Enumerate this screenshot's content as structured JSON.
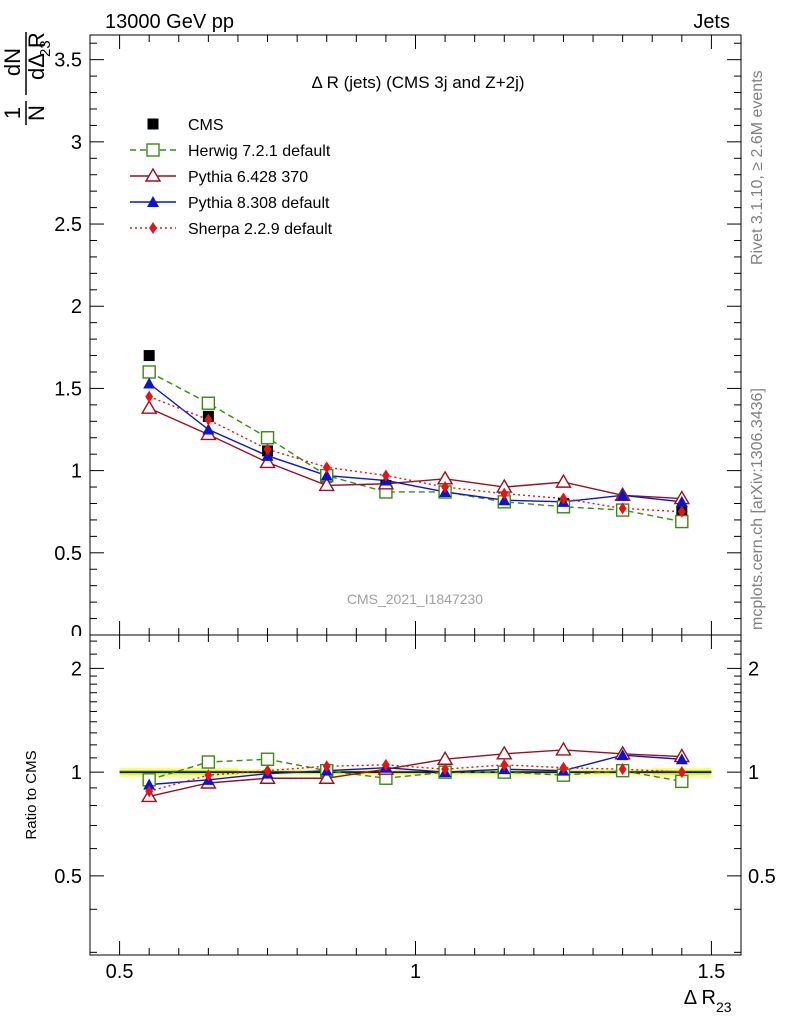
{
  "header": {
    "left": "13000 GeV pp",
    "right": "Jets"
  },
  "side": {
    "rivet": "Rivet 3.1.10, ≥ 2.6M events",
    "mcplots": "mcplots.cern.ch [arXiv:1306.3436]"
  },
  "chart_data": {
    "type": "line",
    "title": "Δ R (jets) (CMS 3j and Z+2j)",
    "watermark": "CMS_2021_I1847230",
    "xlabel": "Δ R",
    "xlabel_sub": "23",
    "ylabel": {
      "num": "1",
      "den": "N",
      "frac_num": "dN",
      "frac_den": "dΔ R",
      "frac_den_sub": "23"
    },
    "ratio_ylabel": "Ratio to CMS",
    "xlim": [
      0.45,
      1.55
    ],
    "ylim": [
      0,
      3.65
    ],
    "ratio_ylim": [
      0.2947,
      2.5
    ],
    "ratio_scale": "log",
    "x_ticks": [
      "0.5",
      "1",
      "1.5"
    ],
    "y_ticks": [
      "0",
      "0.5",
      "1",
      "1.5",
      "2",
      "2.5",
      "3",
      "3.5"
    ],
    "ratio_ticks": [
      "0.5",
      "1",
      "2"
    ],
    "legend_position": "top-left",
    "x": [
      0.55,
      0.65,
      0.75,
      0.85,
      0.95,
      1.05,
      1.15,
      1.25,
      1.35,
      1.45
    ],
    "series": [
      {
        "name": "CMS",
        "color": "#000000",
        "marker": "square-filled",
        "line": "none",
        "values": [
          1.7,
          1.33,
          1.12,
          0.96,
          0.91,
          0.87,
          0.81,
          0.8,
          0.76,
          0.75
        ],
        "ratio": [
          1.0,
          1.0,
          1.0,
          1.0,
          1.0,
          1.0,
          1.0,
          1.0,
          1.0,
          1.0
        ]
      },
      {
        "name": "Herwig 7.2.1 default",
        "color": "#3a8a10",
        "marker": "square-open",
        "line": "dashed",
        "values": [
          1.6,
          1.41,
          1.2,
          0.97,
          0.87,
          0.87,
          0.81,
          0.78,
          0.76,
          0.69
        ],
        "ratio": [
          0.95,
          1.07,
          1.09,
          1.01,
          0.96,
          1.0,
          1.0,
          0.98,
          1.01,
          0.94
        ]
      },
      {
        "name": "Pythia 6.428 370",
        "color": "#9b1020",
        "marker": "triangle-open",
        "line": "solid",
        "values": [
          1.38,
          1.22,
          1.05,
          0.91,
          0.92,
          0.95,
          0.9,
          0.93,
          0.85,
          0.83
        ],
        "ratio": [
          0.85,
          0.93,
          0.96,
          0.96,
          1.02,
          1.09,
          1.13,
          1.16,
          1.13,
          1.11
        ]
      },
      {
        "name": "Pythia 8.308 default",
        "color": "#0a14d0",
        "marker": "triangle-filled",
        "line": "solid",
        "values": [
          1.53,
          1.25,
          1.09,
          0.97,
          0.94,
          0.87,
          0.82,
          0.81,
          0.85,
          0.81
        ],
        "ratio": [
          0.92,
          0.95,
          0.99,
          1.01,
          1.03,
          1.0,
          1.02,
          1.01,
          1.12,
          1.09
        ]
      },
      {
        "name": "Sherpa 2.2.9 default",
        "color": "#ee1010",
        "marker": "diamond-filled",
        "line": "dotted",
        "values": [
          1.45,
          1.31,
          1.13,
          1.02,
          0.97,
          0.9,
          0.86,
          0.83,
          0.77,
          0.75
        ],
        "ratio": [
          0.88,
          0.98,
          1.01,
          1.04,
          1.05,
          1.02,
          1.05,
          1.03,
          1.02,
          1.0
        ]
      }
    ],
    "band": {
      "color": "#ffff66",
      "inner_color": "#b8e05a",
      "half_width": [
        0.03,
        0.03,
        0.02,
        0.02,
        0.02,
        0.02,
        0.02,
        0.02,
        0.02,
        0.03
      ]
    }
  }
}
